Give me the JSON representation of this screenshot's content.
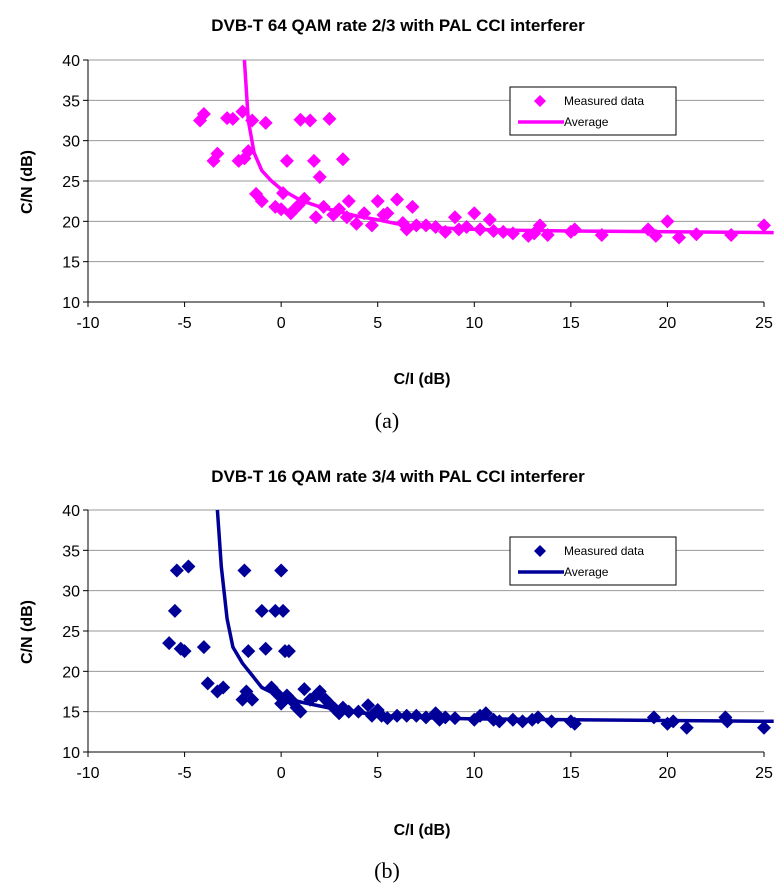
{
  "chart_data": [
    {
      "type": "scatter",
      "title": "DVB-T 64 QAM rate 2/3 with PAL CCI interferer",
      "xlabel": "C/I (dB)",
      "ylabel": "C/N (dB)",
      "caption": "(a)",
      "xlim": [
        -10,
        25
      ],
      "ylim": [
        10,
        40
      ],
      "xticks": [
        "-10",
        "-5",
        "0",
        "5",
        "10",
        "15",
        "20",
        "25"
      ],
      "yticks": [
        "10",
        "15",
        "20",
        "25",
        "30",
        "35",
        "40"
      ],
      "grid": true,
      "legend": "top-right",
      "color": "#ff00ff",
      "series": [
        {
          "name": "Measured data",
          "kind": "markers",
          "points": [
            [
              -4.2,
              32.5
            ],
            [
              -4.0,
              33.3
            ],
            [
              -3.5,
              27.5
            ],
            [
              -3.3,
              28.4
            ],
            [
              -2.8,
              32.8
            ],
            [
              -2.5,
              32.7
            ],
            [
              -2.2,
              27.5
            ],
            [
              -2.0,
              33.6
            ],
            [
              -1.9,
              27.8
            ],
            [
              -1.7,
              28.7
            ],
            [
              -1.5,
              32.5
            ],
            [
              -1.3,
              23.4
            ],
            [
              -1.0,
              22.5
            ],
            [
              -0.8,
              32.2
            ],
            [
              -0.3,
              21.8
            ],
            [
              0.0,
              21.5
            ],
            [
              0.1,
              23.5
            ],
            [
              0.3,
              27.5
            ],
            [
              0.5,
              21.0
            ],
            [
              0.7,
              21.5
            ],
            [
              0.9,
              22.0
            ],
            [
              1.0,
              32.6
            ],
            [
              1.2,
              22.8
            ],
            [
              1.5,
              32.5
            ],
            [
              1.7,
              27.5
            ],
            [
              1.8,
              20.5
            ],
            [
              2.0,
              25.5
            ],
            [
              2.2,
              21.8
            ],
            [
              2.5,
              32.7
            ],
            [
              2.7,
              20.8
            ],
            [
              3.0,
              21.5
            ],
            [
              3.2,
              27.7
            ],
            [
              3.4,
              20.5
            ],
            [
              3.5,
              22.5
            ],
            [
              3.9,
              19.7
            ],
            [
              4.3,
              21.0
            ],
            [
              4.7,
              19.5
            ],
            [
              5.0,
              22.5
            ],
            [
              5.3,
              20.8
            ],
            [
              5.5,
              21.0
            ],
            [
              6.0,
              22.7
            ],
            [
              6.3,
              19.8
            ],
            [
              6.5,
              19.0
            ],
            [
              6.8,
              21.8
            ],
            [
              7.0,
              19.5
            ],
            [
              7.5,
              19.5
            ],
            [
              8.0,
              19.3
            ],
            [
              8.5,
              18.7
            ],
            [
              9.0,
              20.5
            ],
            [
              9.2,
              19.0
            ],
            [
              9.6,
              19.3
            ],
            [
              10.0,
              21.0
            ],
            [
              10.3,
              19.0
            ],
            [
              10.8,
              20.2
            ],
            [
              11.0,
              18.8
            ],
            [
              11.5,
              18.7
            ],
            [
              12.0,
              18.5
            ],
            [
              12.8,
              18.2
            ],
            [
              13.1,
              18.5
            ],
            [
              13.4,
              19.5
            ],
            [
              13.8,
              18.3
            ],
            [
              15.0,
              18.7
            ],
            [
              15.2,
              19.0
            ],
            [
              16.6,
              18.3
            ],
            [
              19.0,
              19.0
            ],
            [
              19.4,
              18.2
            ],
            [
              20.0,
              20.0
            ],
            [
              20.6,
              18.0
            ],
            [
              21.5,
              18.4
            ],
            [
              23.3,
              18.3
            ],
            [
              25.0,
              19.5
            ]
          ]
        },
        {
          "name": "Average",
          "kind": "line",
          "points": [
            [
              -1.9,
              40.0
            ],
            [
              -1.7,
              32.5
            ],
            [
              -1.4,
              28.5
            ],
            [
              -1.0,
              26.3
            ],
            [
              -0.5,
              25.0
            ],
            [
              0.0,
              24.0
            ],
            [
              1.0,
              22.6
            ],
            [
              2.0,
              21.8
            ],
            [
              3.0,
              21.2
            ],
            [
              4.0,
              20.6
            ],
            [
              5.0,
              20.2
            ],
            [
              6.0,
              19.7
            ],
            [
              7.0,
              19.4
            ],
            [
              8.0,
              19.2
            ],
            [
              10.0,
              19.0
            ],
            [
              12.0,
              18.9
            ],
            [
              15.0,
              18.8
            ],
            [
              20.0,
              18.7
            ],
            [
              25.5,
              18.6
            ]
          ]
        }
      ]
    },
    {
      "type": "scatter",
      "title": "DVB-T 16 QAM rate 3/4 with PAL CCI interferer",
      "xlabel": "C/I (dB)",
      "ylabel": "C/N (dB)",
      "caption": "(b)",
      "xlim": [
        -10,
        25
      ],
      "ylim": [
        10,
        40
      ],
      "xticks": [
        "-10",
        "-5",
        "0",
        "5",
        "10",
        "15",
        "20",
        "25"
      ],
      "yticks": [
        "10",
        "15",
        "20",
        "25",
        "30",
        "35",
        "40"
      ],
      "grid": true,
      "legend": "top-right",
      "color": "#000099",
      "series": [
        {
          "name": "Measured data",
          "kind": "markers",
          "points": [
            [
              -5.8,
              23.5
            ],
            [
              -5.5,
              27.5
            ],
            [
              -5.4,
              32.5
            ],
            [
              -5.2,
              22.8
            ],
            [
              -5.0,
              22.5
            ],
            [
              -4.8,
              33.0
            ],
            [
              -4.0,
              23.0
            ],
            [
              -3.8,
              18.5
            ],
            [
              -3.3,
              17.5
            ],
            [
              -3.0,
              18.0
            ],
            [
              -2.0,
              16.5
            ],
            [
              -1.9,
              32.5
            ],
            [
              -1.8,
              17.5
            ],
            [
              -1.7,
              22.5
            ],
            [
              -1.5,
              16.5
            ],
            [
              -1.0,
              27.5
            ],
            [
              -0.8,
              22.8
            ],
            [
              -0.5,
              18.0
            ],
            [
              -0.3,
              27.5
            ],
            [
              -0.2,
              17.2
            ],
            [
              0.0,
              32.5
            ],
            [
              0.0,
              16.0
            ],
            [
              0.1,
              27.5
            ],
            [
              0.2,
              22.5
            ],
            [
              0.3,
              17.0
            ],
            [
              0.4,
              22.5
            ],
            [
              0.5,
              16.5
            ],
            [
              0.8,
              15.5
            ],
            [
              1.0,
              15.0
            ],
            [
              1.2,
              17.8
            ],
            [
              1.5,
              16.5
            ],
            [
              1.8,
              17.0
            ],
            [
              2.0,
              17.5
            ],
            [
              2.3,
              16.5
            ],
            [
              2.5,
              16.0
            ],
            [
              2.8,
              15.3
            ],
            [
              3.0,
              14.8
            ],
            [
              3.2,
              15.5
            ],
            [
              3.5,
              15.0
            ],
            [
              4.0,
              15.0
            ],
            [
              4.5,
              15.8
            ],
            [
              4.7,
              14.5
            ],
            [
              5.0,
              15.2
            ],
            [
              5.2,
              14.5
            ],
            [
              5.5,
              14.2
            ],
            [
              6.0,
              14.5
            ],
            [
              6.5,
              14.5
            ],
            [
              7.0,
              14.5
            ],
            [
              7.5,
              14.3
            ],
            [
              8.0,
              14.8
            ],
            [
              8.2,
              14.0
            ],
            [
              8.5,
              14.3
            ],
            [
              9.0,
              14.2
            ],
            [
              10.0,
              14.0
            ],
            [
              10.3,
              14.5
            ],
            [
              10.6,
              14.8
            ],
            [
              11.0,
              14.0
            ],
            [
              11.3,
              13.8
            ],
            [
              12.0,
              14.0
            ],
            [
              12.5,
              13.8
            ],
            [
              13.0,
              14.0
            ],
            [
              13.3,
              14.3
            ],
            [
              14.0,
              13.8
            ],
            [
              15.0,
              13.8
            ],
            [
              15.2,
              13.5
            ],
            [
              19.3,
              14.3
            ],
            [
              20.0,
              13.5
            ],
            [
              20.3,
              13.8
            ],
            [
              21.0,
              13.0
            ],
            [
              23.0,
              14.3
            ],
            [
              23.1,
              13.8
            ],
            [
              25.0,
              13.0
            ]
          ]
        },
        {
          "name": "Average",
          "kind": "line",
          "points": [
            [
              -3.3,
              40.0
            ],
            [
              -3.1,
              33.0
            ],
            [
              -2.8,
              26.5
            ],
            [
              -2.5,
              23.0
            ],
            [
              -2.0,
              21.0
            ],
            [
              -1.5,
              19.5
            ],
            [
              -1.0,
              18.0
            ],
            [
              0.0,
              16.8
            ],
            [
              1.0,
              16.2
            ],
            [
              2.0,
              15.7
            ],
            [
              3.0,
              15.2
            ],
            [
              4.0,
              14.9
            ],
            [
              5.0,
              14.6
            ],
            [
              6.0,
              14.4
            ],
            [
              8.0,
              14.2
            ],
            [
              10.0,
              14.1
            ],
            [
              15.0,
              14.0
            ],
            [
              20.0,
              13.9
            ],
            [
              25.5,
              13.8
            ]
          ]
        }
      ]
    }
  ]
}
